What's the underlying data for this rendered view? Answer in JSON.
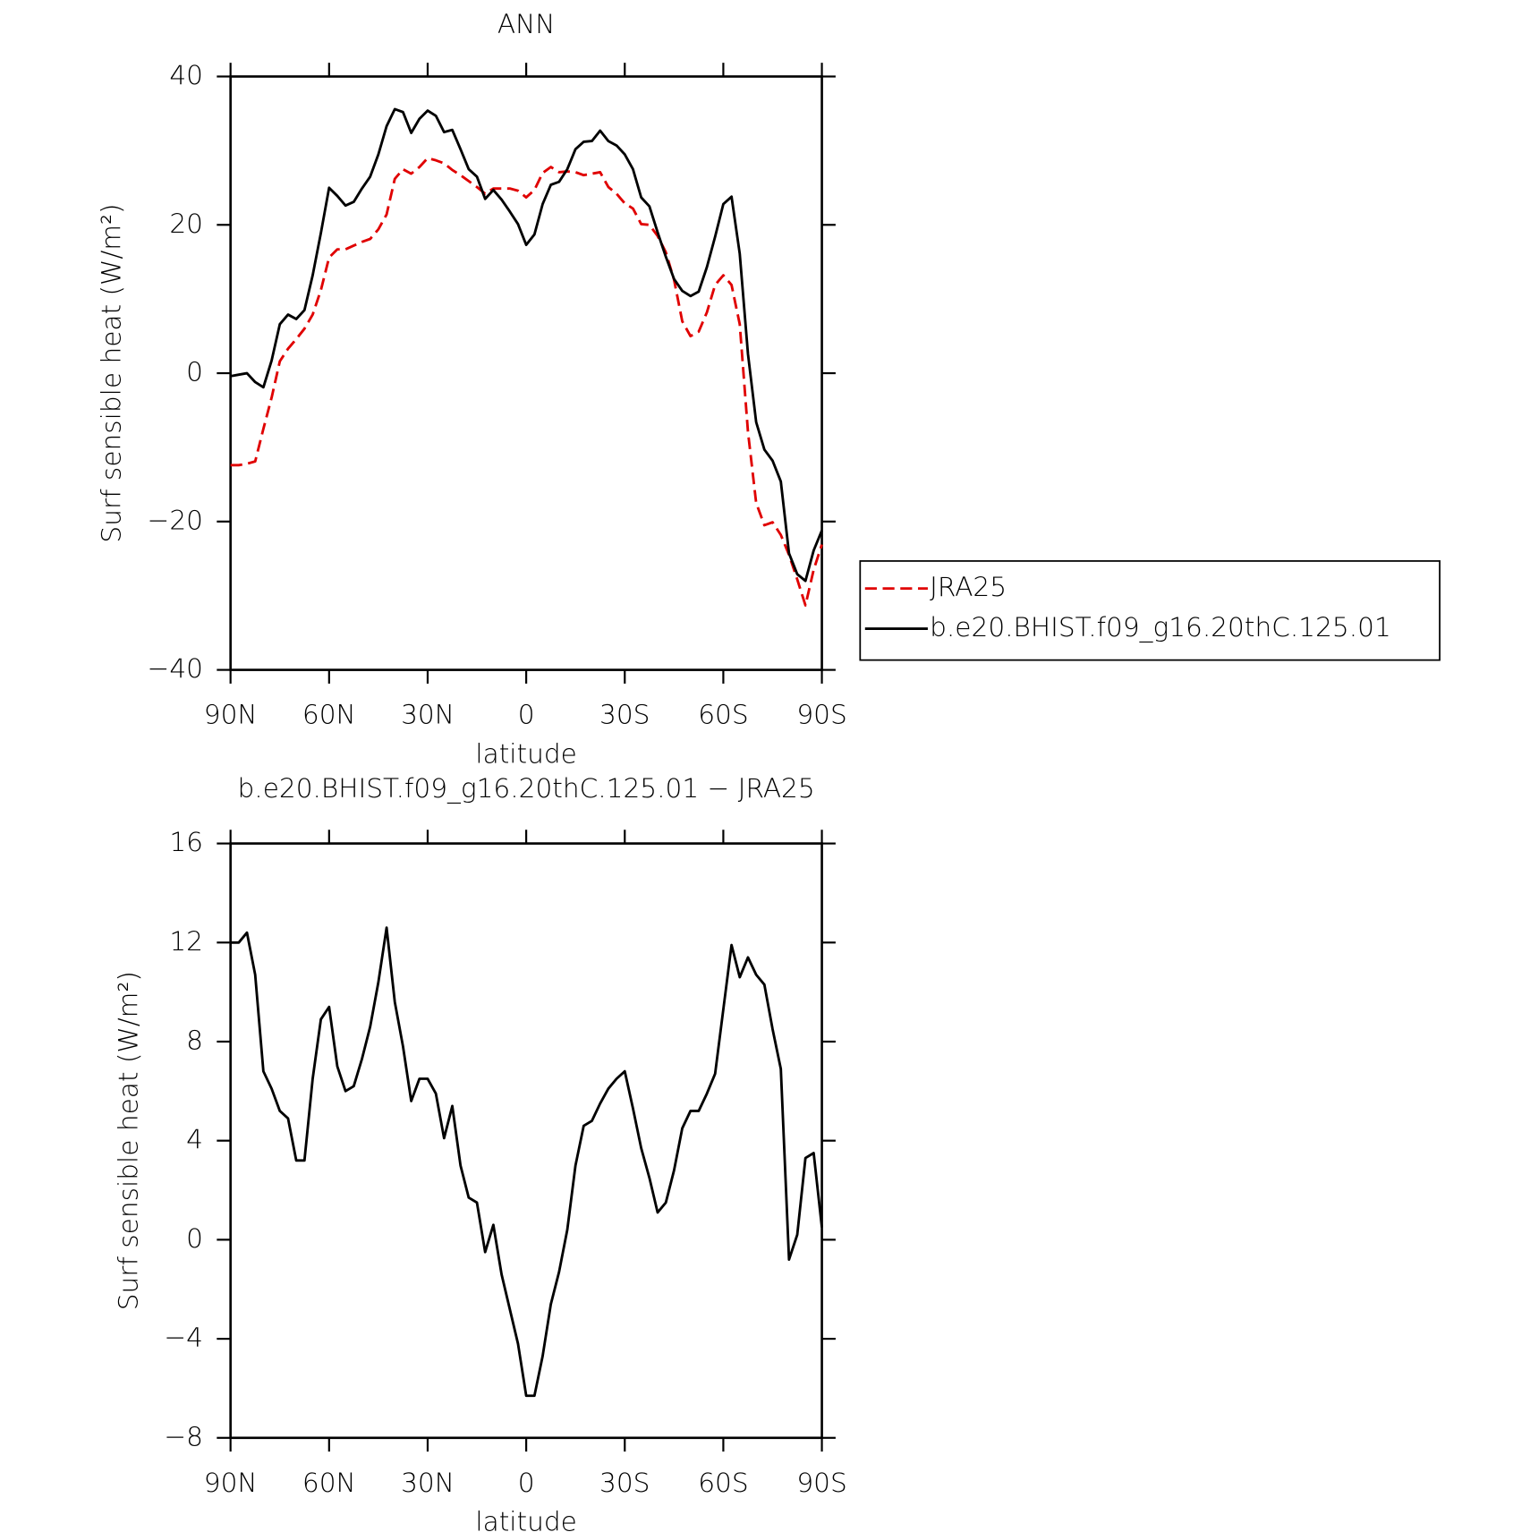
{
  "chart_data": [
    {
      "type": "line",
      "title": "ANN",
      "xlabel": "latitude",
      "ylabel": "Surf sensible heat (W/m²)",
      "x": [
        90,
        87.5,
        85,
        82.5,
        80,
        77.5,
        75,
        72.5,
        70,
        67.5,
        65,
        62.5,
        60,
        57.5,
        55,
        52.5,
        50,
        47.5,
        45,
        42.5,
        40,
        37.5,
        35,
        32.5,
        30,
        27.5,
        25,
        22.5,
        20,
        17.5,
        15,
        12.5,
        10,
        7.5,
        5,
        2.5,
        0,
        -2.5,
        -5,
        -7.5,
        -10,
        -12.5,
        -15,
        -17.5,
        -20,
        -22.5,
        -25,
        -27.5,
        -30,
        -32.5,
        -35,
        -37.5,
        -40,
        -42.5,
        -45,
        -47.5,
        -50,
        -52.5,
        -55,
        -57.5,
        -60,
        -62.5,
        -65,
        -67.5,
        -70,
        -72.5,
        -75,
        -77.5,
        -80,
        -82.5,
        -85,
        -87.5,
        -90
      ],
      "series": [
        {
          "name": "JRA25",
          "color": "#e00000",
          "linestyle": "dashed",
          "values": [
            -12.4,
            -12.4,
            -12.2,
            -11.9,
            -7.5,
            -3.3,
            1.6,
            3.3,
            4.6,
            6,
            7.9,
            11.2,
            15.6,
            16.7,
            16.7,
            17.2,
            17.7,
            18.1,
            19.4,
            21.4,
            26.2,
            27.5,
            26.9,
            27.8,
            29,
            28.7,
            28.3,
            27.4,
            26.7,
            25.9,
            25.1,
            24.2,
            24.9,
            24.9,
            24.9,
            24.6,
            23.7,
            24.7,
            27,
            27.8,
            27.1,
            27.2,
            27.1,
            26.7,
            26.9,
            27.1,
            25.1,
            24.2,
            22.9,
            22.2,
            20.1,
            20,
            18.5,
            16.3,
            12.6,
            7,
            5,
            5.6,
            8.2,
            11.9,
            13.2,
            11.9,
            6.6,
            -7.9,
            -17.5,
            -20.5,
            -20.1,
            -21.8,
            -24.5,
            -27.8,
            -31.3,
            -26.5,
            -23.1
          ]
        },
        {
          "name": "b.e20.BHIST.f09_g16.20thC.125.01",
          "color": "#000000",
          "linestyle": "solid",
          "values": [
            -0.4,
            -0.2,
            0,
            -1.2,
            -1.9,
            1.7,
            6.6,
            7.9,
            7.3,
            8.5,
            13.2,
            18.9,
            25,
            23.9,
            22.6,
            23.1,
            24.9,
            26.5,
            29.5,
            33.3,
            35.6,
            35.2,
            32.4,
            34.3,
            35.4,
            34.7,
            32.5,
            32.8,
            30.2,
            27.5,
            26.5,
            23.5,
            24.7,
            23.4,
            21.8,
            20.1,
            17.3,
            18.7,
            22.8,
            25.4,
            25.8,
            27.5,
            30.2,
            31.2,
            31.3,
            32.7,
            31.3,
            30.7,
            29.5,
            27.5,
            23.7,
            22.5,
            19,
            15.7,
            12.7,
            11.1,
            10.4,
            11,
            14.3,
            18.4,
            22.8,
            23.8,
            16.1,
            2.6,
            -6.6,
            -10.3,
            -11.8,
            -14.6,
            -24.3,
            -27.1,
            -28,
            -23.9,
            -21.2
          ]
        }
      ],
      "xlim": [
        90,
        -90
      ],
      "xticks": [
        {
          "value": 90,
          "label": "90N"
        },
        {
          "value": 60,
          "label": "60N"
        },
        {
          "value": 30,
          "label": "30N"
        },
        0,
        {
          "value": -30,
          "label": "30S"
        },
        {
          "value": -60,
          "label": "60S"
        },
        {
          "value": -90,
          "label": "90S"
        }
      ],
      "ylim": [
        -40,
        40
      ],
      "yticks": [
        {
          "value": -40,
          "label": "−40"
        },
        {
          "value": -20,
          "label": "−20"
        },
        0,
        20,
        40
      ],
      "legend": "right"
    },
    {
      "type": "line",
      "title": "b.e20.BHIST.f09_g16.20thC.125.01 − JRA25",
      "xlabel": "latitude",
      "ylabel": "Surf sensible heat (W/m²)",
      "x": [
        90,
        87.5,
        85,
        82.5,
        80,
        77.5,
        75,
        72.5,
        70,
        67.5,
        65,
        62.5,
        60,
        57.5,
        55,
        52.5,
        50,
        47.5,
        45,
        42.5,
        40,
        37.5,
        35,
        32.5,
        30,
        27.5,
        25,
        22.5,
        20,
        17.5,
        15,
        12.5,
        10,
        7.5,
        5,
        2.5,
        0,
        -2.5,
        -5,
        -7.5,
        -10,
        -12.5,
        -15,
        -17.5,
        -20,
        -22.5,
        -25,
        -27.5,
        -30,
        -32.5,
        -35,
        -37.5,
        -40,
        -42.5,
        -45,
        -47.5,
        -50,
        -52.5,
        -55,
        -57.5,
        -60,
        -62.5,
        -65,
        -67.5,
        -70,
        -72.5,
        -75,
        -77.5,
        -80,
        -82.5,
        -85,
        -87.5,
        -90
      ],
      "values": [
        12,
        12,
        12.4,
        10.7,
        6.8,
        6.1,
        5.2,
        4.9,
        3.2,
        3.2,
        6.5,
        8.9,
        9.4,
        7,
        6,
        6.2,
        7.3,
        8.6,
        10.4,
        12.6,
        9.6,
        7.8,
        5.6,
        6.5,
        6.5,
        5.9,
        4.1,
        5.4,
        3,
        1.7,
        1.5,
        -0.5,
        0.6,
        -1.4,
        -2.8,
        -4.2,
        -6.3,
        -6.3,
        -4.7,
        -2.6,
        -1.3,
        0.4,
        3,
        4.6,
        4.8,
        5.5,
        6.1,
        6.5,
        6.8,
        5.3,
        3.7,
        2.5,
        1.1,
        1.5,
        2.8,
        4.5,
        5.2,
        5.2,
        5.9,
        6.7,
        9.3,
        11.9,
        10.6,
        11.4,
        10.7,
        10.3,
        8.5,
        6.9,
        -0.8,
        0.2,
        3.3,
        3.5,
        0.5
      ],
      "color": "#000000",
      "xlim": [
        90,
        -90
      ],
      "xticks": [
        {
          "value": 90,
          "label": "90N"
        },
        {
          "value": 60,
          "label": "60N"
        },
        {
          "value": 30,
          "label": "30N"
        },
        0,
        {
          "value": -30,
          "label": "30S"
        },
        {
          "value": -60,
          "label": "60S"
        },
        {
          "value": -90,
          "label": "90S"
        }
      ],
      "ylim": [
        -8,
        16
      ],
      "yticks": [
        {
          "value": -8,
          "label": "−8"
        },
        {
          "value": -4,
          "label": "−4"
        },
        0,
        4,
        8,
        12,
        16
      ]
    }
  ]
}
